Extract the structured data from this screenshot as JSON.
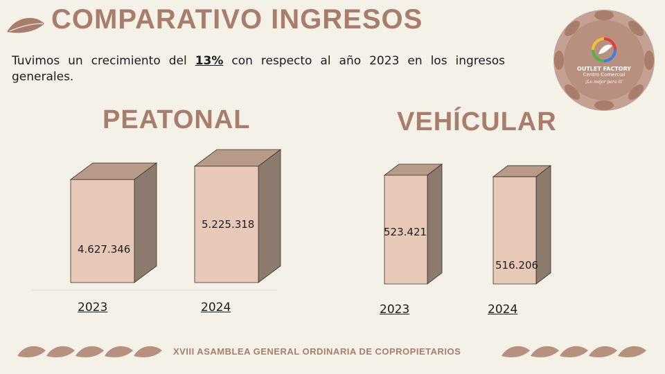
{
  "header": {
    "title": "COMPARATIVO INGRESOS",
    "subtitle_before": "Tuvimos un crecimiento del ",
    "subtitle_highlight": "13%",
    "subtitle_after": " con respecto al año 2023 en los ingresos generales."
  },
  "logo": {
    "name": "OUTLET FACTORY",
    "subname": "Centro Comercial",
    "tagline": "¡Lo mejor para ti!"
  },
  "footer": {
    "text": "XVIII ASAMBLEA GENERAL ORDINARIA DE COPROPIETARIOS"
  },
  "colors": {
    "accent": "#a97d6b",
    "bar_front": "#e8c9b8",
    "bar_top": "#b79a88",
    "bar_side": "#8c7a6e",
    "background": "#f3f1e8"
  },
  "chart_data": [
    {
      "type": "bar",
      "title": "PEATONAL",
      "categories": [
        "2023",
        "2024"
      ],
      "values": [
        4627346,
        5225318
      ],
      "labels": [
        "4.627.346",
        "5.225.318"
      ]
    },
    {
      "type": "bar",
      "title": "VEHÍCULAR",
      "categories": [
        "2023",
        "2024"
      ],
      "values": [
        523421,
        516206
      ],
      "labels": [
        "523.421",
        "516.206"
      ]
    }
  ]
}
